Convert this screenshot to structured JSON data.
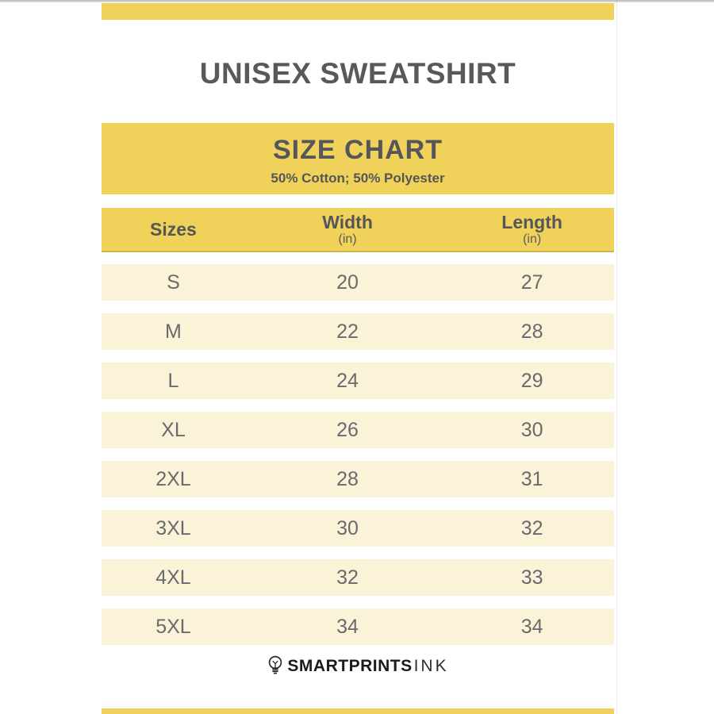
{
  "colors": {
    "accent_yellow": "#F0D159",
    "row_cream": "#FAF3D8",
    "heading_gray": "#58595B",
    "row_text_gray": "#696A6D",
    "hairline_gray": "#C9C9C9",
    "logo_black": "#1B1B1B"
  },
  "header": {
    "product_title": "UNISEX SWEATSHIRT"
  },
  "size_chart": {
    "heading": "SIZE CHART",
    "subheading": "50% Cotton; 50% Polyester",
    "columns": [
      {
        "label": "Sizes",
        "unit": ""
      },
      {
        "label": "Width",
        "unit": "(in)"
      },
      {
        "label": "Length",
        "unit": "(in)"
      }
    ],
    "rows": [
      {
        "size": "S",
        "width": "20",
        "length": "27"
      },
      {
        "size": "M",
        "width": "22",
        "length": "28"
      },
      {
        "size": "L",
        "width": "24",
        "length": "29"
      },
      {
        "size": "XL",
        "width": "26",
        "length": "30"
      },
      {
        "size": "2XL",
        "width": "28",
        "length": "31"
      },
      {
        "size": "3XL",
        "width": "30",
        "length": "32"
      },
      {
        "size": "4XL",
        "width": "32",
        "length": "33"
      },
      {
        "size": "5XL",
        "width": "34",
        "length": "34"
      }
    ]
  },
  "brand": {
    "icon": "lightbulb-icon",
    "name_primary": "SMARTPRINTS",
    "name_secondary": "INK"
  },
  "chart_data": {
    "type": "table",
    "title": "SIZE CHART",
    "subtitle": "50% Cotton; 50% Polyester",
    "context_title": "UNISEX SWEATSHIRT",
    "columns": [
      "Sizes",
      "Width (in)",
      "Length (in)"
    ],
    "rows": [
      [
        "S",
        20,
        27
      ],
      [
        "M",
        22,
        28
      ],
      [
        "L",
        24,
        29
      ],
      [
        "XL",
        26,
        30
      ],
      [
        "2XL",
        28,
        31
      ],
      [
        "3XL",
        30,
        32
      ],
      [
        "4XL",
        32,
        33
      ],
      [
        "5XL",
        34,
        34
      ]
    ]
  }
}
